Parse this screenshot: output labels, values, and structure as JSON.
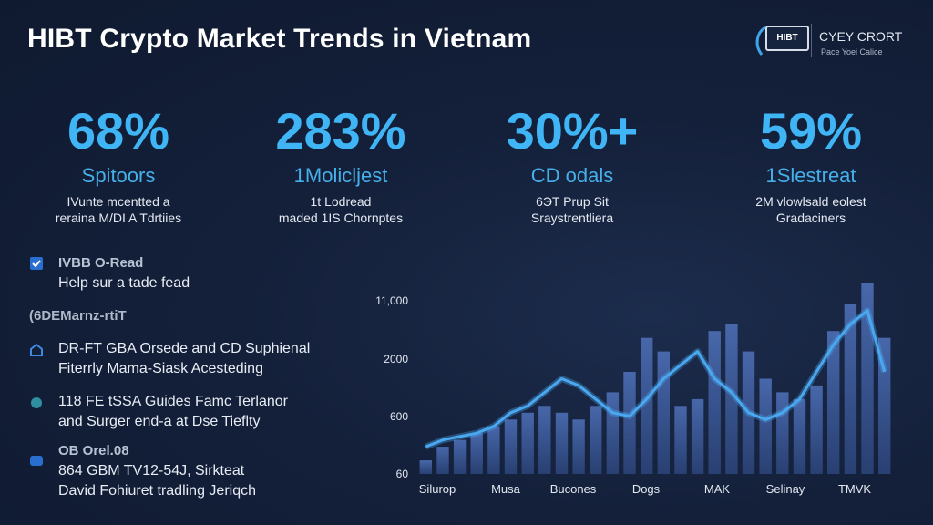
{
  "header": {
    "title": "HIBT Crypto Market Trends in Vietnam",
    "logo_text": "HIBT",
    "brand_name": "CYEY CRORT",
    "brand_tagline": "Pace Yoei Calice"
  },
  "stats": [
    {
      "value": "68%",
      "label": "Spitoors",
      "desc_1": "IVunte mcentted a",
      "desc_2": "reraina M/DI A Tdrtiies"
    },
    {
      "value": "283%",
      "label": "1Molicljest",
      "desc_1": "1t Lodread",
      "desc_2": "maded 1IS Chornptes"
    },
    {
      "value": "30%+",
      "label": "CD odals",
      "desc_1": "6ЭT Prup Sit",
      "desc_2": "Sraystrentliera"
    },
    {
      "value": "59%",
      "label": "1Slestreat",
      "desc_1": "2M vlowlsald eolest",
      "desc_2": "Gradaciners"
    }
  ],
  "left_panel": {
    "item1_head": "IVBB O-Read",
    "item1_text": "Help sur a tade fead",
    "section_head": "(6DEMarnz-rtiT",
    "item2_line1": "DR-FT GBA Orsede and CD Suphienal",
    "item2_line2": "Fiterrly Mama-Siask Acesteding",
    "item3_line1": "118 FE tSSA Guides Famc Terlanor",
    "item3_line2": "and Surger end-a at Dse Tieflty",
    "item4_head": "OB Orel.08",
    "item4_line1": "864 GBM TV12-54J, Sirkteat",
    "item4_line2": "David Fohiuret tradling Jeriqch"
  },
  "colors": {
    "accent": "#3fb5f5",
    "bar": "#3d5a99",
    "line": "#4aa8f0",
    "background": "#14203a"
  },
  "chart_data": {
    "type": "bar",
    "y_tick_labels": [
      "11,000",
      "2000",
      "600",
      "60"
    ],
    "x_tick_labels": [
      "Silurop",
      "Musa",
      "Bucones",
      "Dogs",
      "MAK",
      "Selinay",
      "TMVK"
    ],
    "bars": [
      2,
      4,
      5,
      6,
      7,
      8,
      9,
      10,
      9,
      8,
      10,
      12,
      15,
      20,
      18,
      10,
      11,
      21,
      22,
      18,
      14,
      12,
      11,
      13,
      21,
      25,
      28,
      20
    ],
    "line": [
      4,
      5,
      5.5,
      6,
      7,
      9,
      10,
      12,
      14,
      13,
      11,
      9,
      8.5,
      11,
      14,
      16,
      18,
      14,
      12,
      9,
      8,
      9,
      11,
      15,
      19,
      22,
      24,
      15
    ]
  }
}
